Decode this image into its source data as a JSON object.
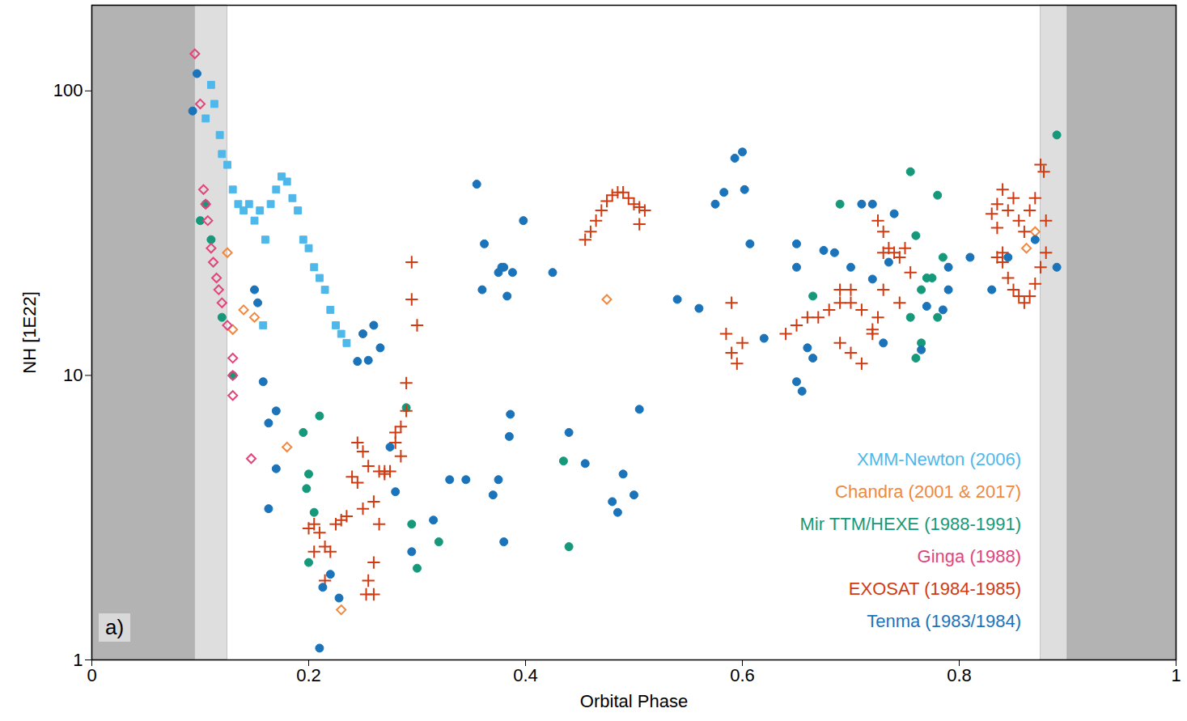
{
  "chart_data": {
    "type": "scatter",
    "x_label": "Orbital Phase",
    "y_label": "NH [1E22]",
    "panel": "a)",
    "log": "y",
    "grid": false,
    "legend": "lower right",
    "xlim": [
      0,
      1
    ],
    "xticks": [
      0,
      0.2,
      0.4,
      0.6,
      0.8,
      1
    ],
    "ylim": [
      1,
      200
    ],
    "yticks": [
      1,
      10,
      100
    ],
    "shaded_regions": [
      [
        0,
        0.095
      ],
      [
        0.095,
        0.125
      ],
      [
        0.875,
        0.9
      ],
      [
        0.9,
        1
      ]
    ],
    "series": [
      {
        "name": "XMM-Newton (2006)",
        "color": "#4fb8ea",
        "marker": "square",
        "x": [
          0.105,
          0.11,
          0.113,
          0.118,
          0.12,
          0.125,
          0.13,
          0.135,
          0.14,
          0.145,
          0.15,
          0.155,
          0.158,
          0.16,
          0.165,
          0.17,
          0.175,
          0.18,
          0.185,
          0.19,
          0.195,
          0.2,
          0.205,
          0.21,
          0.215,
          0.22,
          0.225,
          0.23,
          0.235
        ],
        "values": [
          80,
          105,
          90,
          70,
          60,
          55,
          45,
          40,
          38,
          40,
          35,
          38,
          15,
          30,
          40,
          45,
          50,
          48,
          42,
          38,
          30,
          28,
          24,
          22,
          20,
          17,
          15,
          14,
          13
        ]
      },
      {
        "name": "Chandra (2001 & 2017)",
        "color": "#f0883e",
        "marker": "diamond2",
        "x": [
          0.125,
          0.13,
          0.14,
          0.15,
          0.18,
          0.23,
          0.475,
          0.862,
          0.87
        ],
        "values": [
          27,
          14.5,
          17,
          16,
          5.6,
          1.5,
          18.5,
          28,
          32
        ]
      },
      {
        "name": "Mir TTM/HEXE (1988-1991)",
        "color": "#16997a",
        "marker": "circle",
        "x": [
          0.1,
          0.105,
          0.11,
          0.12,
          0.13,
          0.195,
          0.198,
          0.2,
          0.2,
          0.205,
          0.21,
          0.29,
          0.295,
          0.3,
          0.32,
          0.435,
          0.44,
          0.665,
          0.69,
          0.755,
          0.755,
          0.76,
          0.76,
          0.765,
          0.765,
          0.77,
          0.775,
          0.78,
          0.78,
          0.785,
          0.89
        ],
        "values": [
          35,
          40,
          30,
          16,
          10,
          6.3,
          4,
          4.5,
          2.2,
          3.3,
          7.2,
          7.7,
          3,
          2.1,
          2.6,
          5,
          2.5,
          19,
          40,
          52,
          16,
          31,
          11.5,
          20,
          13,
          22,
          22,
          43,
          16,
          26,
          70
        ]
      },
      {
        "name": "Ginga (1988)",
        "color": "#e2457c",
        "marker": "diamond2",
        "x": [
          0.095,
          0.1,
          0.103,
          0.105,
          0.107,
          0.11,
          0.112,
          0.115,
          0.117,
          0.12,
          0.125,
          0.13,
          0.13,
          0.13,
          0.147
        ],
        "values": [
          135,
          90,
          45,
          40,
          35,
          28,
          25,
          22,
          20,
          18,
          15,
          11.5,
          10,
          8.5,
          5.1
        ]
      },
      {
        "name": "EXOSAT (1984-1985)",
        "color": "#d23b12",
        "marker": "plus",
        "x": [
          0.295,
          0.295,
          0.3,
          0.29,
          0.29,
          0.285,
          0.28,
          0.275,
          0.27,
          0.265,
          0.26,
          0.255,
          0.253,
          0.26,
          0.455,
          0.46,
          0.465,
          0.47,
          0.475,
          0.48,
          0.485,
          0.49,
          0.495,
          0.5,
          0.505,
          0.51,
          0.505,
          0.725,
          0.73,
          0.735,
          0.74,
          0.745,
          0.75,
          0.755,
          0.73,
          0.2,
          0.205,
          0.21,
          0.215,
          0.22,
          0.225,
          0.23,
          0.235,
          0.24,
          0.245,
          0.25,
          0.255,
          0.26,
          0.265,
          0.27,
          0.28,
          0.285,
          0.215,
          0.205,
          0.25,
          0.245,
          0.64,
          0.65,
          0.66,
          0.67,
          0.68,
          0.69,
          0.7,
          0.71,
          0.72,
          0.725,
          0.69,
          0.7,
          0.73,
          0.745,
          0.59,
          0.585,
          0.59,
          0.595,
          0.6,
          0.69,
          0.7,
          0.71,
          0.72,
          0.835,
          0.84,
          0.845,
          0.85,
          0.855,
          0.86,
          0.865,
          0.87,
          0.875,
          0.878,
          0.83,
          0.835,
          0.84,
          0.845,
          0.85,
          0.855,
          0.86,
          0.865,
          0.87,
          0.875,
          0.88,
          0.88,
          0.835,
          0.84
        ],
        "values": [
          25,
          18.5,
          15,
          9.4,
          7.5,
          6.6,
          5.8,
          4.6,
          4.6,
          3,
          2.2,
          1.9,
          1.7,
          1.7,
          30,
          32,
          35,
          38,
          41,
          43,
          44,
          44,
          42,
          40,
          39,
          38,
          34,
          35,
          32,
          28,
          27,
          26,
          28,
          23,
          27,
          2.9,
          2.4,
          2.8,
          2.5,
          2.4,
          3,
          3.1,
          3.2,
          4.4,
          5.8,
          5.4,
          4.8,
          3.6,
          4.6,
          4.5,
          6.3,
          5.2,
          1.9,
          3,
          3.4,
          4.2,
          14,
          15,
          16,
          16,
          17,
          18,
          20,
          17,
          14.5,
          16,
          20,
          18,
          20,
          18,
          18,
          14,
          12,
          11,
          13,
          13,
          12,
          11,
          14,
          40,
          45,
          38,
          42,
          35,
          32,
          38,
          42,
          55,
          52,
          37,
          33,
          25,
          22,
          20,
          19,
          18,
          19,
          21,
          24,
          27,
          35,
          26,
          27
        ]
      },
      {
        "name": "Tenma (1983/1984)",
        "color": "#1b74ba",
        "marker": "circle",
        "x": [
          0.097,
          0.093,
          0.15,
          0.153,
          0.158,
          0.163,
          0.17,
          0.17,
          0.163,
          0.21,
          0.213,
          0.22,
          0.228,
          0.245,
          0.25,
          0.255,
          0.26,
          0.266,
          0.275,
          0.28,
          0.295,
          0.315,
          0.33,
          0.345,
          0.355,
          0.36,
          0.362,
          0.375,
          0.378,
          0.38,
          0.383,
          0.388,
          0.398,
          0.425,
          0.37,
          0.375,
          0.38,
          0.385,
          0.386,
          0.44,
          0.455,
          0.48,
          0.485,
          0.49,
          0.5,
          0.505,
          0.54,
          0.56,
          0.575,
          0.583,
          0.593,
          0.6,
          0.602,
          0.607,
          0.62,
          0.65,
          0.655,
          0.66,
          0.665,
          0.72,
          0.73,
          0.765,
          0.77,
          0.785,
          0.79,
          0.65,
          0.65,
          0.675,
          0.685,
          0.7,
          0.71,
          0.72,
          0.735,
          0.74,
          0.79,
          0.81,
          0.83,
          0.845,
          0.87,
          0.89
        ],
        "values": [
          115,
          85,
          20,
          18,
          9.5,
          6.8,
          7.5,
          4.7,
          3.4,
          1.1,
          1.8,
          2,
          1.65,
          11.2,
          14,
          11.3,
          15,
          12.5,
          5.6,
          3.9,
          2.4,
          3.1,
          4.3,
          4.3,
          47,
          20,
          29,
          23,
          24,
          24,
          19,
          23,
          35,
          23,
          3.8,
          4.3,
          2.6,
          6.1,
          7.3,
          6.3,
          4.9,
          3.6,
          3.3,
          4.5,
          3.8,
          7.6,
          18.5,
          17.2,
          40,
          44,
          58,
          61,
          45,
          29,
          13.5,
          9.5,
          8.8,
          12.5,
          11.5,
          21.8,
          13,
          12.3,
          17.5,
          17,
          20,
          29,
          24,
          27.5,
          27,
          24,
          40,
          40,
          25,
          37,
          24,
          26,
          20,
          26,
          30,
          24
        ]
      }
    ]
  }
}
